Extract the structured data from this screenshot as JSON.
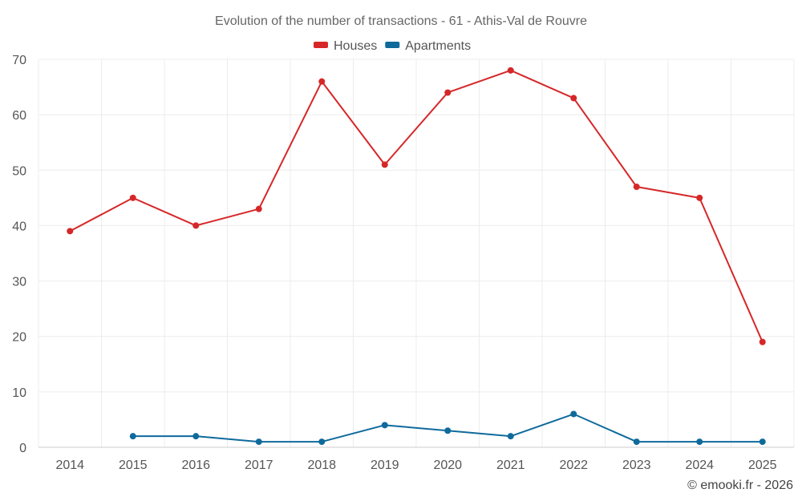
{
  "chart_data": {
    "type": "line",
    "title": "Evolution of the number of transactions - 61 - Athis-Val de Rouvre",
    "categories": [
      "2014",
      "2015",
      "2016",
      "2017",
      "2018",
      "2019",
      "2020",
      "2021",
      "2022",
      "2023",
      "2024",
      "2025"
    ],
    "ylim": [
      0,
      70
    ],
    "yticks": [
      0,
      10,
      20,
      30,
      40,
      50,
      60,
      70
    ],
    "grid": true,
    "legend_position": "top-center",
    "series": [
      {
        "name": "Houses",
        "color": "#d62728",
        "values": [
          39,
          45,
          40,
          43,
          66,
          51,
          64,
          68,
          63,
          47,
          45,
          19
        ]
      },
      {
        "name": "Apartments",
        "color": "#0f6a9c",
        "values": [
          null,
          2,
          2,
          1,
          1,
          4,
          3,
          2,
          6,
          1,
          1,
          1
        ]
      }
    ]
  },
  "credit": "© emooki.fr - 2026"
}
